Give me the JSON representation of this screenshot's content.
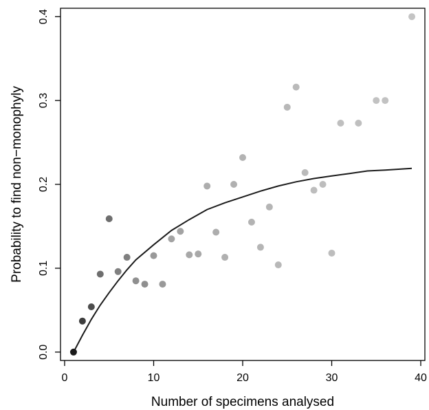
{
  "chart_data": {
    "type": "scatter",
    "title": "",
    "xlabel": "Number of specimens analysed",
    "ylabel": "Probability to find non−monophyly",
    "xlim": [
      0,
      40
    ],
    "ylim": [
      -0.01,
      0.41
    ],
    "x_ticks": [
      0,
      10,
      20,
      30,
      40
    ],
    "x_tick_labels": [
      "0",
      "10",
      "20",
      "30",
      "40"
    ],
    "y_ticks": [
      0.0,
      0.1,
      0.2,
      0.3,
      0.4
    ],
    "y_tick_labels": [
      "0.0",
      "0.1",
      "0.2",
      "0.3",
      "0.4"
    ],
    "grid": false,
    "legend": "none",
    "series": [
      {
        "points": [
          {
            "x": 1,
            "y": 0.0,
            "color": "#1a1a1a"
          },
          {
            "x": 2,
            "y": 0.037,
            "color": "#3d3d3d"
          },
          {
            "x": 3,
            "y": 0.054,
            "color": "#4d4d4d"
          },
          {
            "x": 4,
            "y": 0.093,
            "color": "#6e6e6e"
          },
          {
            "x": 5,
            "y": 0.159,
            "color": "#6e6e6e"
          },
          {
            "x": 6,
            "y": 0.096,
            "color": "#808080"
          },
          {
            "x": 7,
            "y": 0.113,
            "color": "#808080"
          },
          {
            "x": 8,
            "y": 0.085,
            "color": "#8f8f8f"
          },
          {
            "x": 9,
            "y": 0.081,
            "color": "#8f8f8f"
          },
          {
            "x": 10,
            "y": 0.115,
            "color": "#999999"
          },
          {
            "x": 11,
            "y": 0.081,
            "color": "#999999"
          },
          {
            "x": 12,
            "y": 0.135,
            "color": "#a3a3a3"
          },
          {
            "x": 13,
            "y": 0.144,
            "color": "#a3a3a3"
          },
          {
            "x": 14,
            "y": 0.116,
            "color": "#a8a8a8"
          },
          {
            "x": 15,
            "y": 0.117,
            "color": "#a8a8a8"
          },
          {
            "x": 16,
            "y": 0.198,
            "color": "#adadad"
          },
          {
            "x": 17,
            "y": 0.143,
            "color": "#adadad"
          },
          {
            "x": 18,
            "y": 0.113,
            "color": "#b0b0b0"
          },
          {
            "x": 19,
            "y": 0.2,
            "color": "#b0b0b0"
          },
          {
            "x": 20,
            "y": 0.232,
            "color": "#b3b3b3"
          },
          {
            "x": 21,
            "y": 0.155,
            "color": "#b3b3b3"
          },
          {
            "x": 22,
            "y": 0.125,
            "color": "#b5b5b5"
          },
          {
            "x": 23,
            "y": 0.173,
            "color": "#b5b5b5"
          },
          {
            "x": 24,
            "y": 0.104,
            "color": "#b8b8b8"
          },
          {
            "x": 25,
            "y": 0.292,
            "color": "#b8b8b8"
          },
          {
            "x": 26,
            "y": 0.316,
            "color": "#bababa"
          },
          {
            "x": 27,
            "y": 0.214,
            "color": "#bababa"
          },
          {
            "x": 28,
            "y": 0.193,
            "color": "#bdbdbd"
          },
          {
            "x": 29,
            "y": 0.2,
            "color": "#bdbdbd"
          },
          {
            "x": 30,
            "y": 0.118,
            "color": "#bdbdbd"
          },
          {
            "x": 31,
            "y": 0.273,
            "color": "#bfbfbf"
          },
          {
            "x": 33,
            "y": 0.273,
            "color": "#bfbfbf"
          },
          {
            "x": 35,
            "y": 0.3,
            "color": "#c2c2c2"
          },
          {
            "x": 36,
            "y": 0.3,
            "color": "#c2c2c2"
          },
          {
            "x": 39,
            "y": 0.4,
            "color": "#c4c4c4"
          }
        ]
      }
    ],
    "fit_curve": {
      "type": "line",
      "color": "#1a1a1a",
      "points": [
        {
          "x": 1,
          "y": 0.0
        },
        {
          "x": 2,
          "y": 0.02
        },
        {
          "x": 3,
          "y": 0.039
        },
        {
          "x": 4,
          "y": 0.056
        },
        {
          "x": 5,
          "y": 0.071
        },
        {
          "x": 6,
          "y": 0.085
        },
        {
          "x": 7,
          "y": 0.098
        },
        {
          "x": 8,
          "y": 0.11
        },
        {
          "x": 10,
          "y": 0.128
        },
        {
          "x": 12,
          "y": 0.145
        },
        {
          "x": 14,
          "y": 0.158
        },
        {
          "x": 16,
          "y": 0.17
        },
        {
          "x": 18,
          "y": 0.178
        },
        {
          "x": 20,
          "y": 0.185
        },
        {
          "x": 22,
          "y": 0.192
        },
        {
          "x": 24,
          "y": 0.198
        },
        {
          "x": 26,
          "y": 0.203
        },
        {
          "x": 28,
          "y": 0.207
        },
        {
          "x": 30,
          "y": 0.21
        },
        {
          "x": 32,
          "y": 0.213
        },
        {
          "x": 34,
          "y": 0.216
        },
        {
          "x": 36,
          "y": 0.217
        },
        {
          "x": 39,
          "y": 0.219
        }
      ]
    }
  }
}
